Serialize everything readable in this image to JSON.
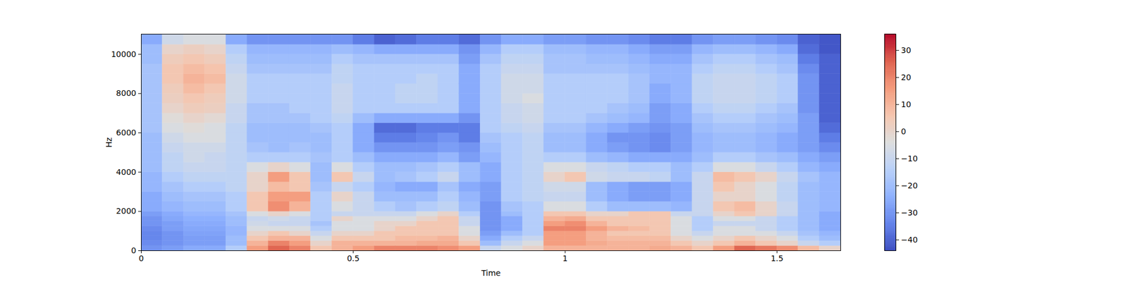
{
  "chart_data": {
    "type": "heatmap",
    "xlabel": "Time",
    "ylabel": "Hz",
    "xlim": [
      0,
      1.65
    ],
    "xticks": [
      0,
      0.5,
      1,
      1.5
    ],
    "ylim": [
      0,
      11025
    ],
    "yticks": [
      0,
      2000,
      4000,
      6000,
      8000,
      10000
    ],
    "cells": {
      "x_edges": [
        0,
        0.05,
        0.1,
        0.15,
        0.2,
        0.25,
        0.3,
        0.35,
        0.4,
        0.45,
        0.5,
        0.55,
        0.6,
        0.65,
        0.7,
        0.75,
        0.8,
        0.85,
        0.9,
        0.95,
        1,
        1.05,
        1.1,
        1.15,
        1.2,
        1.25,
        1.3,
        1.35,
        1.4,
        1.45,
        1.5,
        1.55,
        1.6,
        1.65
      ],
      "y_edges": [
        0,
        250,
        500,
        750,
        1000,
        1250,
        1500,
        1750,
        2000,
        2500,
        3000,
        3500,
        4000,
        4500,
        5000,
        5500,
        6000,
        6500,
        7000,
        7500,
        8000,
        8500,
        9000,
        9500,
        10000,
        10500,
        11025
      ],
      "values": [
        [
          -30,
          -32,
          -33,
          -33,
          -32,
          -30,
          -30,
          -28,
          -25,
          -25,
          -22,
          -22,
          -20,
          -20,
          -20,
          -20,
          -18,
          -18,
          -18,
          -18,
          -18,
          -18,
          -18,
          -20,
          -20,
          -25
        ],
        [
          -28,
          -30,
          -30,
          -30,
          -28,
          -28,
          -26,
          -25,
          -22,
          -20,
          -18,
          -15,
          -12,
          -12,
          -10,
          -8,
          -5,
          -3,
          0,
          2,
          3,
          5,
          5,
          3,
          0,
          -8
        ],
        [
          -25,
          -28,
          -28,
          -27,
          -26,
          -25,
          -24,
          -22,
          -20,
          -18,
          -15,
          -12,
          -10,
          -8,
          -8,
          -5,
          -3,
          0,
          3,
          5,
          8,
          10,
          8,
          5,
          2,
          -5
        ],
        [
          -25,
          -28,
          -28,
          -27,
          -26,
          -25,
          -24,
          -22,
          -20,
          -18,
          -15,
          -12,
          -10,
          -10,
          -8,
          -5,
          -5,
          -2,
          2,
          3,
          5,
          8,
          6,
          3,
          0,
          -5
        ],
        [
          -15,
          -20,
          -20,
          -22,
          -22,
          -20,
          -20,
          -18,
          -15,
          -15,
          -12,
          -12,
          -12,
          -12,
          -12,
          -12,
          -12,
          -10,
          -10,
          -8,
          -8,
          -8,
          -10,
          -12,
          -15,
          -25
        ],
        [
          15,
          10,
          5,
          0,
          -5,
          -8,
          -10,
          -5,
          5,
          5,
          0,
          0,
          -5,
          -15,
          -18,
          -20,
          -20,
          -18,
          -18,
          -15,
          -15,
          -15,
          -18,
          -20,
          -22,
          -30
        ],
        [
          25,
          20,
          10,
          5,
          -5,
          -10,
          -8,
          0,
          18,
          15,
          8,
          15,
          0,
          -15,
          -20,
          -20,
          -20,
          -18,
          -18,
          -15,
          -15,
          -15,
          -18,
          -20,
          -22,
          -30
        ],
        [
          20,
          15,
          10,
          0,
          -5,
          -10,
          -10,
          -5,
          10,
          15,
          5,
          5,
          -5,
          -15,
          -18,
          -20,
          -20,
          -18,
          -15,
          -15,
          -15,
          -15,
          -18,
          -20,
          -22,
          -30
        ],
        [
          5,
          0,
          -5,
          -10,
          -15,
          -18,
          -15,
          -15,
          -15,
          -15,
          -18,
          -20,
          -20,
          -18,
          -20,
          -20,
          -18,
          -15,
          -15,
          -15,
          -15,
          -15,
          -18,
          -20,
          -22,
          -30
        ],
        [
          10,
          10,
          5,
          0,
          -5,
          -5,
          0,
          -10,
          -5,
          0,
          -10,
          5,
          -5,
          -15,
          -15,
          -15,
          -15,
          -12,
          -10,
          -10,
          -10,
          -12,
          -12,
          -15,
          -20,
          -30
        ],
        [
          15,
          10,
          5,
          0,
          -5,
          -5,
          -5,
          -10,
          -10,
          -10,
          -15,
          -10,
          -15,
          -20,
          -25,
          -25,
          -25,
          -20,
          -15,
          -15,
          -15,
          -15,
          -15,
          -18,
          -22,
          -35
        ],
        [
          20,
          10,
          5,
          5,
          0,
          0,
          -5,
          -10,
          -15,
          -20,
          -22,
          -20,
          -20,
          -25,
          -30,
          -35,
          -38,
          -25,
          -15,
          -15,
          -15,
          -15,
          -15,
          -18,
          -25,
          -40
        ],
        [
          20,
          10,
          8,
          5,
          5,
          0,
          -5,
          -10,
          -18,
          -20,
          -25,
          -18,
          -20,
          -25,
          -30,
          -35,
          -38,
          -25,
          -15,
          -12,
          -12,
          -15,
          -15,
          -18,
          -25,
          -38
        ],
        [
          20,
          12,
          8,
          5,
          5,
          5,
          0,
          -5,
          -15,
          -20,
          -25,
          -15,
          -18,
          -25,
          -30,
          -33,
          -35,
          -25,
          -15,
          -12,
          -12,
          -12,
          -15,
          -18,
          -25,
          -35
        ],
        [
          18,
          12,
          10,
          5,
          5,
          5,
          5,
          0,
          -12,
          -15,
          -18,
          -10,
          -15,
          -22,
          -28,
          -30,
          -35,
          -25,
          -15,
          -15,
          -15,
          -15,
          -15,
          -18,
          -25,
          -35
        ],
        [
          15,
          5,
          0,
          -5,
          -5,
          -10,
          -10,
          -15,
          -20,
          -22,
          -25,
          -20,
          -20,
          -28,
          -30,
          -35,
          -35,
          -30,
          -25,
          -25,
          -25,
          -25,
          -25,
          -28,
          -30,
          -38
        ],
        [
          -10,
          -20,
          -25,
          -28,
          -30,
          -30,
          -30,
          -30,
          -30,
          -28,
          -28,
          -25,
          -25,
          -22,
          -20,
          -18,
          -15,
          -15,
          -15,
          -15,
          -15,
          -15,
          -15,
          -18,
          -22,
          -30
        ],
        [
          -5,
          -10,
          -15,
          -20,
          -25,
          -25,
          -25,
          -20,
          -18,
          -15,
          -15,
          -15,
          -15,
          -15,
          -15,
          -15,
          -12,
          -10,
          -10,
          -8,
          -8,
          -8,
          -10,
          -12,
          -15,
          -25
        ],
        [
          0,
          -5,
          -10,
          -15,
          -15,
          -15,
          -15,
          -15,
          -15,
          -12,
          -12,
          -12,
          -12,
          -12,
          -12,
          -12,
          -10,
          -8,
          -8,
          -5,
          -8,
          -8,
          -10,
          -12,
          -15,
          -25
        ],
        [
          10,
          15,
          15,
          15,
          20,
          15,
          10,
          5,
          -5,
          -10,
          -8,
          0,
          -5,
          -15,
          -20,
          -20,
          -18,
          -15,
          -15,
          -15,
          -15,
          -15,
          -18,
          -18,
          -20,
          -28
        ],
        [
          10,
          15,
          15,
          15,
          20,
          18,
          12,
          5,
          -5,
          -10,
          -8,
          5,
          -5,
          -15,
          -20,
          -20,
          -18,
          -15,
          -15,
          -15,
          -15,
          -15,
          -18,
          -18,
          -20,
          -28
        ],
        [
          10,
          12,
          10,
          10,
          15,
          10,
          5,
          0,
          -15,
          -20,
          -20,
          -8,
          -10,
          -20,
          -25,
          -25,
          -22,
          -18,
          -15,
          -15,
          -15,
          -15,
          -18,
          -20,
          -22,
          -30
        ],
        [
          10,
          10,
          8,
          5,
          10,
          5,
          5,
          0,
          -20,
          -25,
          -25,
          -10,
          -12,
          -22,
          -28,
          -30,
          -25,
          -20,
          -18,
          -15,
          -15,
          -15,
          -18,
          -20,
          -22,
          -30
        ],
        [
          10,
          10,
          8,
          5,
          8,
          5,
          5,
          5,
          -20,
          -28,
          -28,
          -10,
          -15,
          -25,
          -30,
          -30,
          -28,
          -22,
          -20,
          -18,
          -18,
          -18,
          -20,
          -22,
          -25,
          -32
        ],
        [
          12,
          10,
          8,
          5,
          5,
          5,
          5,
          5,
          -20,
          -28,
          -28,
          -12,
          -15,
          -25,
          -32,
          -32,
          -30,
          -28,
          -28,
          -25,
          -25,
          -22,
          -22,
          -25,
          -28,
          -35
        ],
        [
          10,
          5,
          0,
          -5,
          -5,
          -5,
          -5,
          -10,
          -22,
          -25,
          -25,
          -20,
          -20,
          -25,
          -28,
          -28,
          -28,
          -25,
          -25,
          -22,
          -22,
          -22,
          -22,
          -25,
          -28,
          -35
        ],
        [
          5,
          0,
          -5,
          -10,
          -15,
          -15,
          -15,
          -10,
          -10,
          -10,
          -10,
          -10,
          -15,
          -20,
          -22,
          -22,
          -20,
          -18,
          -15,
          -12,
          -12,
          -12,
          -15,
          -18,
          -22,
          -30
        ],
        [
          15,
          5,
          0,
          -5,
          -5,
          -10,
          -5,
          0,
          5,
          0,
          5,
          8,
          -5,
          -15,
          -20,
          -20,
          -18,
          -15,
          -12,
          -10,
          -10,
          -10,
          -12,
          -15,
          -20,
          -28
        ],
        [
          25,
          10,
          5,
          -5,
          -5,
          -10,
          -5,
          5,
          8,
          0,
          0,
          5,
          -5,
          -15,
          -20,
          -20,
          -18,
          -15,
          -12,
          -10,
          -10,
          -10,
          -12,
          -15,
          -20,
          -28
        ],
        [
          22,
          5,
          0,
          -5,
          -10,
          -10,
          -10,
          0,
          0,
          -5,
          -5,
          0,
          -10,
          -18,
          -22,
          -22,
          -20,
          -18,
          -15,
          -12,
          -12,
          -12,
          -15,
          -18,
          -22,
          -30
        ],
        [
          18,
          0,
          -5,
          -10,
          -15,
          -15,
          -15,
          -10,
          -10,
          -12,
          -12,
          -10,
          -15,
          -20,
          -25,
          -25,
          -22,
          -20,
          -18,
          -15,
          -15,
          -15,
          -18,
          -20,
          -25,
          -32
        ],
        [
          8,
          -10,
          -15,
          -18,
          -20,
          -20,
          -20,
          -20,
          -20,
          -20,
          -20,
          -18,
          -22,
          -25,
          -28,
          -28,
          -28,
          -28,
          -30,
          -30,
          -30,
          -30,
          -32,
          -35,
          -38,
          -40
        ],
        [
          0,
          -15,
          -20,
          -22,
          -25,
          -25,
          -25,
          -25,
          -22,
          -22,
          -22,
          -22,
          -25,
          -28,
          -32,
          -35,
          -38,
          -40,
          -40,
          -40,
          -40,
          -40,
          -40,
          -40,
          -42,
          -42
        ]
      ]
    },
    "colorbar": {
      "range": [
        -44,
        36
      ],
      "ticks": [
        -40,
        -30,
        -20,
        -10,
        0,
        10,
        20,
        30
      ]
    }
  }
}
